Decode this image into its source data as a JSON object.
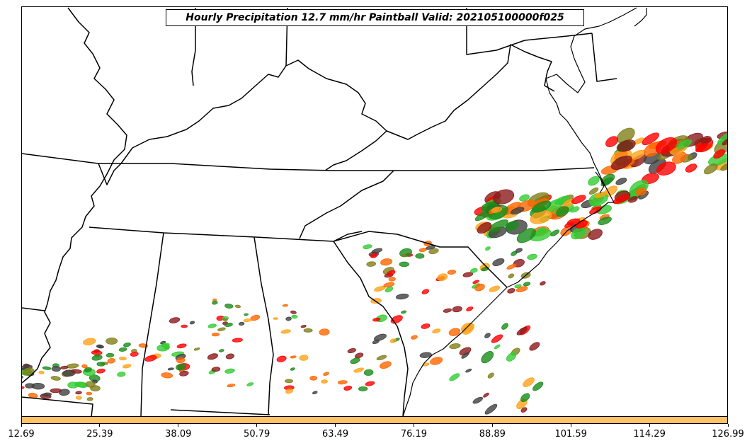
{
  "title": "Hourly Precipitation 12.7 mm/hr Paintball Valid: 202105100000f025",
  "colorbar": {
    "color": "#ffc266",
    "tick_labels": [
      "12.69",
      "25.39",
      "38.09",
      "50.79",
      "63.49",
      "76.19",
      "88.89",
      "101.59",
      "114.29",
      "126.99"
    ]
  },
  "member_colors": [
    "#ff0000",
    "#ff6600",
    "#ffa31a",
    "#33cc33",
    "#1a8c1a",
    "#7f7f1a",
    "#8b1a1a",
    "#404040"
  ],
  "map": {
    "region": "Southeastern United States",
    "features": [
      "state-boundaries",
      "coastline"
    ]
  }
}
